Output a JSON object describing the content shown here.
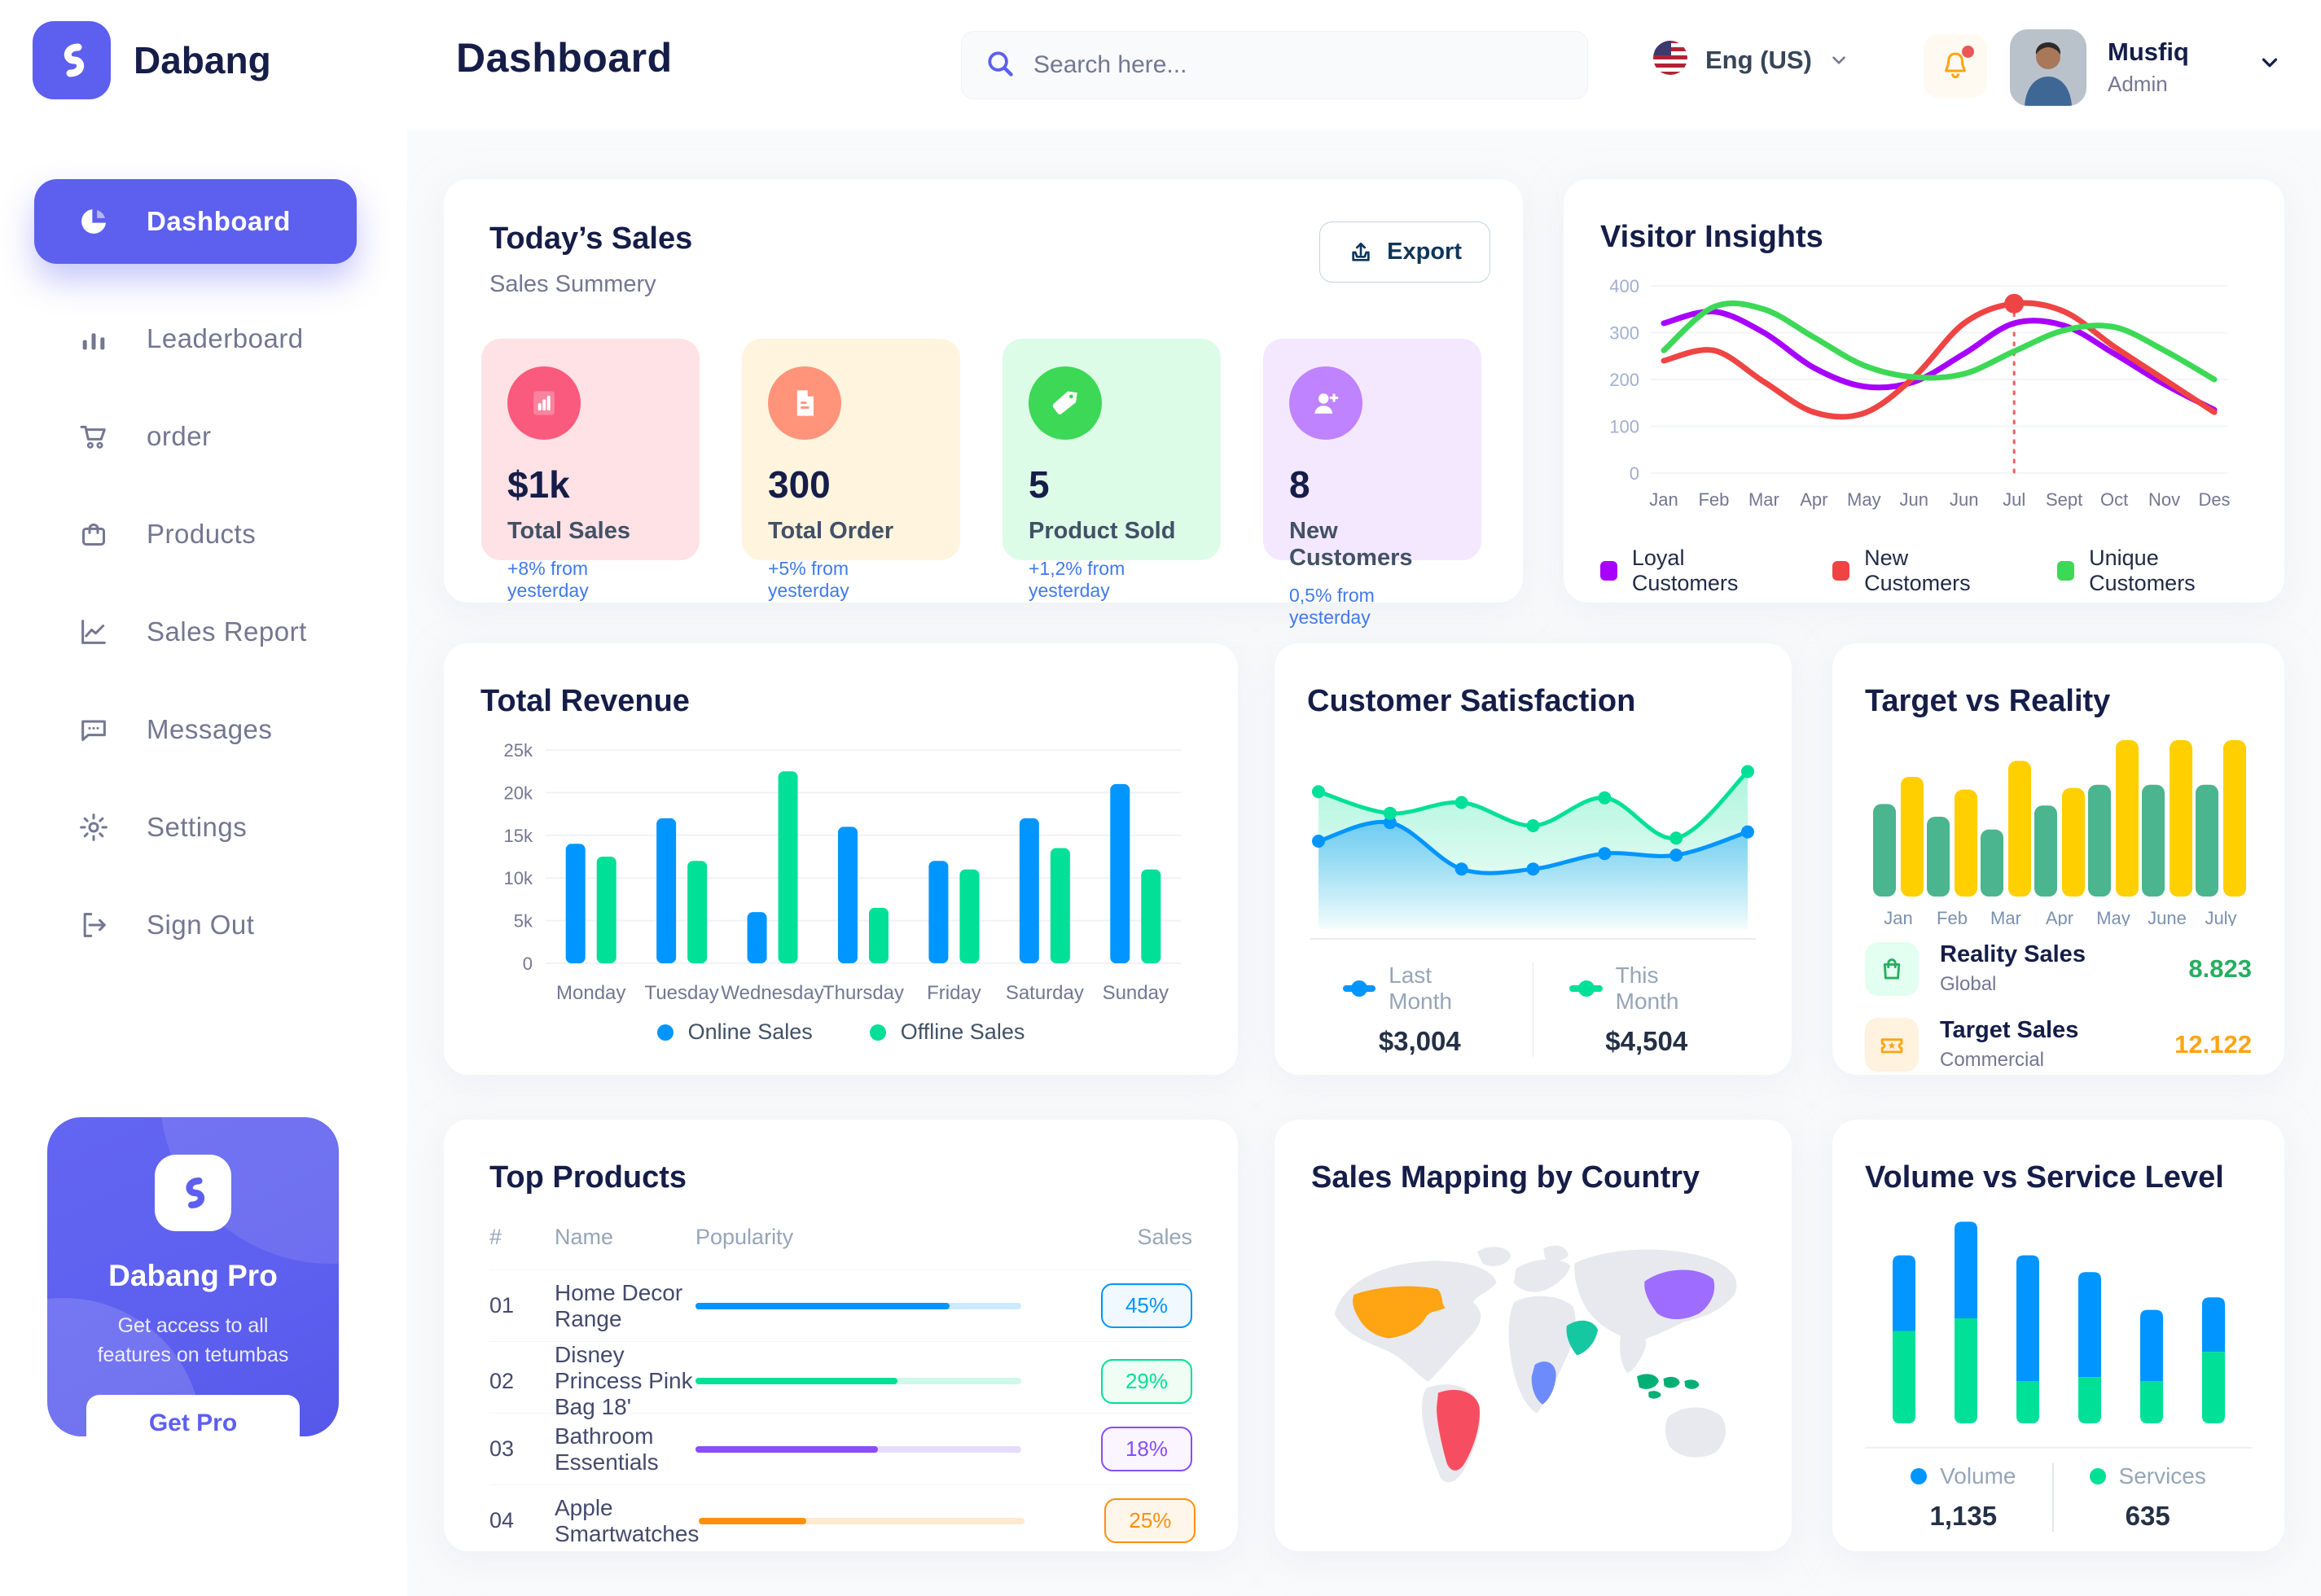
{
  "brand": {
    "name": "Dabang"
  },
  "header": {
    "title": "Dashboard",
    "search_placeholder": "Search here...",
    "language": "Eng (US)",
    "user_name": "Musfiq",
    "user_role": "Admin"
  },
  "sidebar": {
    "items": [
      {
        "label": "Dashboard",
        "icon": "pie",
        "active": true
      },
      {
        "label": "Leaderboard",
        "icon": "bars",
        "active": false
      },
      {
        "label": "order",
        "icon": "cart",
        "active": false
      },
      {
        "label": "Products",
        "icon": "bag",
        "active": false
      },
      {
        "label": "Sales Report",
        "icon": "chartline",
        "active": false
      },
      {
        "label": "Messages",
        "icon": "chat",
        "active": false
      },
      {
        "label": "Settings",
        "icon": "gear",
        "active": false
      },
      {
        "label": "Sign Out",
        "icon": "signout",
        "active": false
      }
    ],
    "promo": {
      "title": "Dabang Pro",
      "description": "Get access to all features on tetumbas",
      "button_label": "Get Pro"
    }
  },
  "today_sales": {
    "title": "Today’s Sales",
    "subtitle": "Sales Summery",
    "export_label": "Export",
    "cards": [
      {
        "value": "$1k",
        "label": "Total Sales",
        "trend": "+8% from yesterday",
        "bg": "#FFE2E5",
        "icon_bg": "#FA5A7D",
        "icon": "chart-doc"
      },
      {
        "value": "300",
        "label": "Total Order",
        "trend": "+5% from yesterday",
        "bg": "#FFF4DE",
        "icon_bg": "#FF947A",
        "icon": "file"
      },
      {
        "value": "5",
        "label": "Product Sold",
        "trend": "+1,2% from yesterday",
        "bg": "#DCFCE7",
        "icon_bg": "#3CD856",
        "icon": "tag"
      },
      {
        "value": "8",
        "label": "New Customers",
        "trend": "0,5% from yesterday",
        "bg": "#F3E8FF",
        "icon_bg": "#BF83FF",
        "icon": "user-plus"
      }
    ]
  },
  "chart_data": [
    {
      "id": "visitor_insights",
      "type": "line",
      "title": "Visitor Insights",
      "x": [
        "Jan",
        "Feb",
        "Mar",
        "Apr",
        "May",
        "Jun",
        "Jun",
        "Jul",
        "Sept",
        "Oct",
        "Nov",
        "Des"
      ],
      "ylim": [
        0,
        400
      ],
      "yticks": [
        0,
        100,
        200,
        300,
        400
      ],
      "grid": true,
      "legend_position": "bottom",
      "highlight": {
        "series": "New Customers",
        "index": 7,
        "style": "dashed-vertical-line-and-dot",
        "color": "#EF4444"
      },
      "series": [
        {
          "name": "Loyal Customers",
          "color": "#A700FF",
          "values": [
            320,
            345,
            300,
            225,
            185,
            195,
            255,
            320,
            315,
            255,
            190,
            135
          ]
        },
        {
          "name": "New Customers",
          "color": "#EF4444",
          "values": [
            240,
            262,
            195,
            130,
            128,
            205,
            320,
            362,
            345,
            270,
            200,
            130
          ]
        },
        {
          "name": "Unique Customers",
          "color": "#3CD856",
          "values": [
            262,
            355,
            350,
            290,
            230,
            205,
            212,
            260,
            305,
            312,
            262,
            200
          ]
        }
      ]
    },
    {
      "id": "total_revenue",
      "type": "bar",
      "title": "Total Revenue",
      "categories": [
        "Monday",
        "Tuesday",
        "Wednesday",
        "Thursday",
        "Friday",
        "Saturday",
        "Sunday"
      ],
      "ylim": [
        0,
        25
      ],
      "yticks_labels": [
        "0",
        "5k",
        "10k",
        "15k",
        "20k",
        "25k"
      ],
      "unit": "thousand-dollars",
      "grid": true,
      "legend_position": "bottom",
      "series": [
        {
          "name": "Online Sales",
          "color": "#0095FF",
          "values": [
            14,
            17,
            6,
            16,
            12,
            17,
            21
          ]
        },
        {
          "name": "Offline Sales",
          "color": "#00E096",
          "values": [
            12.5,
            12,
            22.5,
            6.5,
            11,
            13.5,
            11
          ]
        }
      ]
    },
    {
      "id": "customer_satisfaction",
      "type": "area",
      "title": "Customer Satisfaction",
      "ylim": [
        0,
        100
      ],
      "unit": "relative-index",
      "legend_position": "bottom",
      "series": [
        {
          "name": "Last Month",
          "total": "$3,004",
          "color": "#0095FF",
          "values": [
            40,
            52,
            22,
            22,
            32,
            31,
            46
          ]
        },
        {
          "name": "This Month",
          "total": "$4,504",
          "color": "#00E096",
          "values": [
            72,
            58,
            65,
            50,
            68,
            42,
            85
          ]
        }
      ]
    },
    {
      "id": "target_vs_reality",
      "type": "bar",
      "title": "Target vs Reality",
      "categories": [
        "Jan",
        "Feb",
        "Mar",
        "Apr",
        "May",
        "June",
        "July"
      ],
      "ylim": [
        0,
        100
      ],
      "unit": "relative-percent",
      "legend_position": "bottom",
      "series": [
        {
          "name": "Reality Sales",
          "subtitle": "Global",
          "value_label": "8.823",
          "value_color": "#27AE60",
          "color": "#4AB58E",
          "tile_bg": "#E2FFF1",
          "icon": "bag-green",
          "values": [
            58,
            50,
            42,
            57,
            70,
            70,
            70
          ]
        },
        {
          "name": "Target Sales",
          "subtitle": "Commercial",
          "value_label": "12.122",
          "value_color": "#FFA412",
          "color": "#FFCF00",
          "tile_bg": "#FFF2DE",
          "icon": "ticket-orange",
          "values": [
            75,
            67,
            85,
            68,
            98,
            98,
            98
          ]
        }
      ]
    },
    {
      "id": "volume_service",
      "type": "stacked-bar",
      "title": "Volume vs Service Level",
      "ylim": [
        0,
        50
      ],
      "unit": "relative",
      "legend_position": "bottom",
      "series": [
        {
          "name": "Volume",
          "total": "1,135",
          "color": "#0095FF",
          "values": [
            18,
            23,
            30,
            25,
            17,
            13
          ]
        },
        {
          "name": "Services",
          "total": "635",
          "color": "#00E096",
          "values": [
            22,
            25,
            10,
            11,
            10,
            17
          ]
        }
      ]
    }
  ],
  "top_products": {
    "title": "Top Products",
    "columns": [
      "#",
      "Name",
      "Popularity",
      "Sales"
    ],
    "rows": [
      {
        "num": "01",
        "name": "Home Decor Range",
        "popularity": 78,
        "sales": "45%",
        "color": "#0095FF",
        "badge_bg": "#F0F9FF"
      },
      {
        "num": "02",
        "name": "Disney Princess Pink Bag 18'",
        "popularity": 62,
        "sales": "29%",
        "color": "#00E096",
        "badge_bg": "#F0FDF4"
      },
      {
        "num": "03",
        "name": "Bathroom Essentials",
        "popularity": 56,
        "sales": "18%",
        "color": "#884DFF",
        "badge_bg": "#FBF5FF"
      },
      {
        "num": "04",
        "name": "Apple Smartwatches",
        "popularity": 33,
        "sales": "25%",
        "color": "#FF8F0D",
        "badge_bg": "#FFF6EB"
      }
    ]
  },
  "sales_map": {
    "title": "Sales Mapping by Country",
    "countries": [
      {
        "name": "United States",
        "color": "#FFA412"
      },
      {
        "name": "Brazil",
        "color": "#F64E60"
      },
      {
        "name": "DR Congo",
        "color": "#6E8BFB"
      },
      {
        "name": "Saudi Arabia",
        "color": "#16C8A2"
      },
      {
        "name": "China",
        "color": "#9E6CFF"
      },
      {
        "name": "Indonesia",
        "color": "#00B074"
      }
    ]
  }
}
